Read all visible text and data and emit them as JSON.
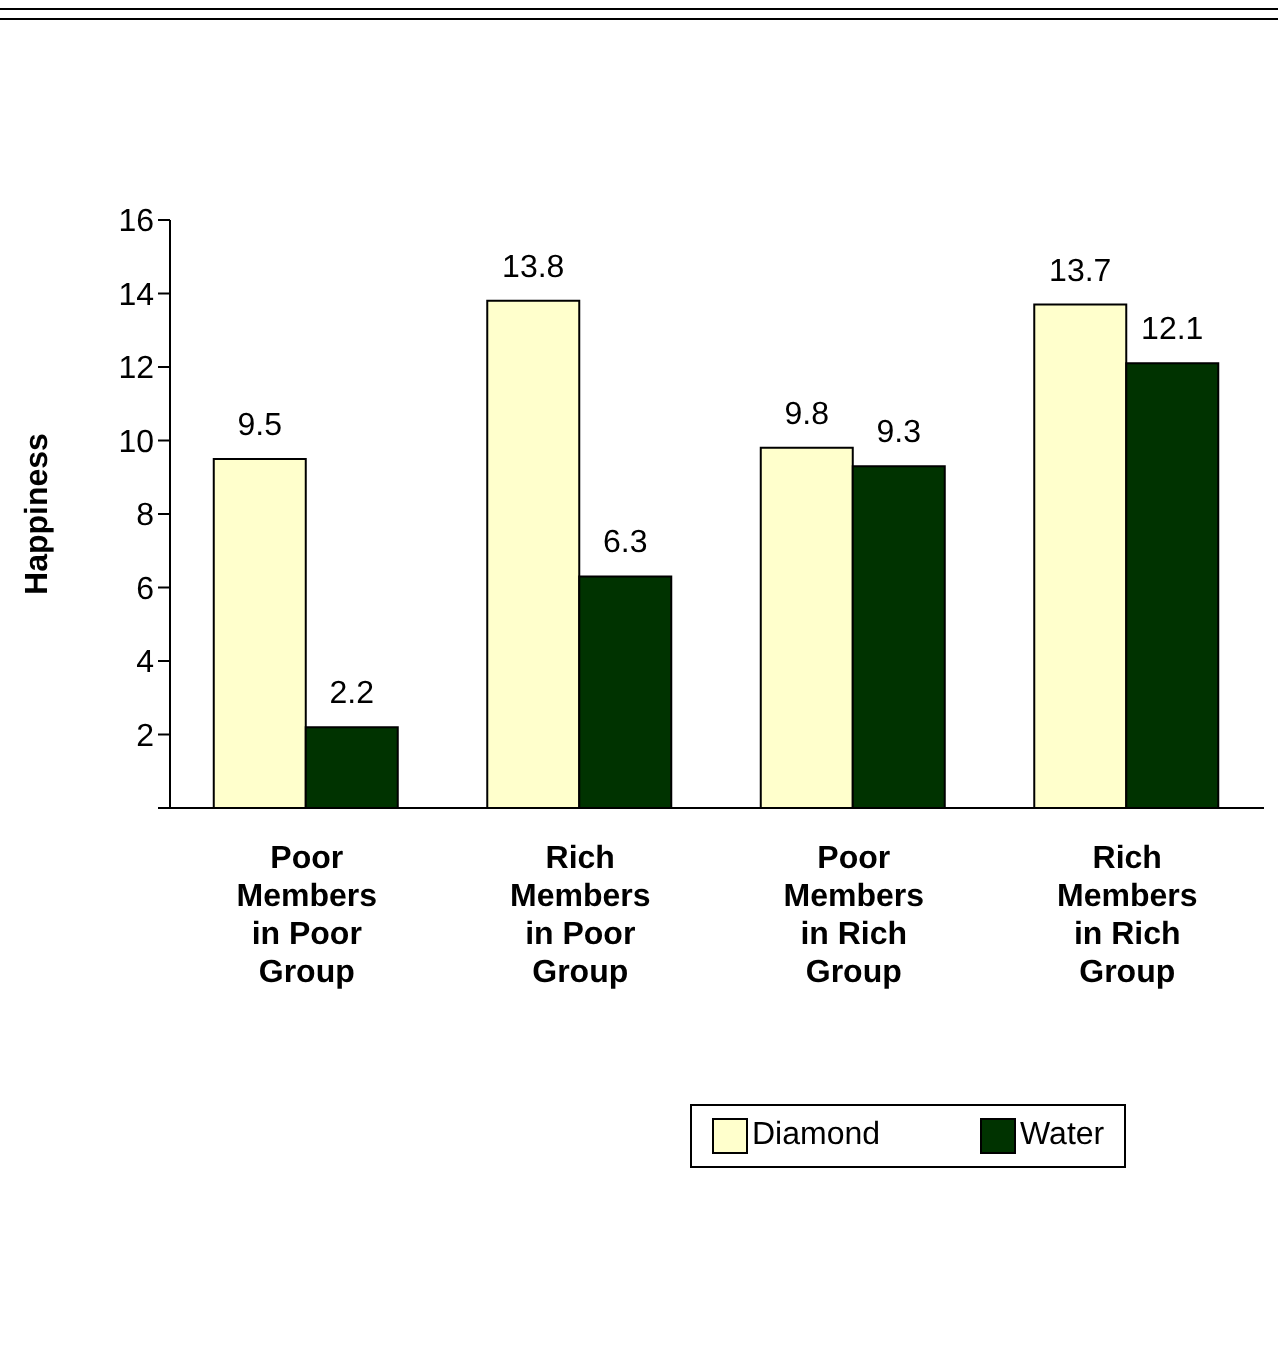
{
  "chart_data": {
    "type": "bar",
    "ylabel": "Happiness",
    "categories": [
      "Poor Members in Poor Group",
      "Rich Members in Poor Group",
      "Poor Members in Rich Group",
      "Rich Members in Rich Group"
    ],
    "series": [
      {
        "name": "Diamond",
        "color": "#ffffcc",
        "values": [
          9.5,
          13.8,
          9.8,
          13.7
        ]
      },
      {
        "name": "Water",
        "color": "#003300",
        "values": [
          2.2,
          6.3,
          9.3,
          12.1
        ]
      }
    ],
    "ylim": [
      0,
      16
    ],
    "yticks": [
      {
        "value": 0,
        "label": null
      },
      2,
      4,
      6,
      8,
      10,
      12,
      14,
      16
    ],
    "data_labels": true,
    "legend": "bottom"
  }
}
